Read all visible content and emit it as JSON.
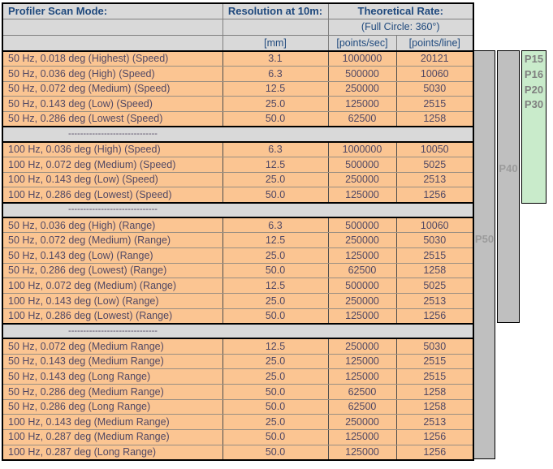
{
  "table": {
    "header": {
      "col1": "Profiler Scan Mode:",
      "col2": "Resolution at 10m:",
      "col34": "Theoretical Rate:",
      "subtitle": "(Full Circle: 360°)",
      "units": [
        "[mm]",
        "[points/sec]",
        "[points/line]"
      ]
    },
    "separator_dashes": "------------------------------",
    "rows": [
      {
        "mode": "50 Hz, 0.018 deg (Highest) (Speed)",
        "mm": "3.1",
        "pps": "1000000",
        "ppl": "20121"
      },
      {
        "mode": "50 Hz, 0.036 deg (High) (Speed)",
        "mm": "6.3",
        "pps": "500000",
        "ppl": "10060"
      },
      {
        "mode": "50 Hz, 0.072 deg (Medium) (Speed)",
        "mm": "12.5",
        "pps": "250000",
        "ppl": "5030"
      },
      {
        "mode": "50 Hz, 0.143 deg (Low) (Speed)",
        "mm": "25.0",
        "pps": "125000",
        "ppl": "2515"
      },
      {
        "mode": "50 Hz, 0.286 deg (Lowest (Speed)",
        "mm": "50.0",
        "pps": "62500",
        "ppl": "1258"
      },
      {
        "sep": true
      },
      {
        "mode": "100 Hz, 0.036 deg (High) (Speed)",
        "mm": "6.3",
        "pps": "1000000",
        "ppl": "10050"
      },
      {
        "mode": "100 Hz, 0.072 deg (Medium) (Speed)",
        "mm": "12.5",
        "pps": "500000",
        "ppl": "5025"
      },
      {
        "mode": "100 Hz, 0.143 deg (Low) (Speed)",
        "mm": "25.0",
        "pps": "250000",
        "ppl": "2513"
      },
      {
        "mode": "100 Hz, 0.286 deg (Lowest) (Speed)",
        "mm": "50.0",
        "pps": "125000",
        "ppl": "1256"
      },
      {
        "sep": true
      },
      {
        "mode": "50 Hz, 0.036 deg (High) (Range)",
        "mm": "6.3",
        "pps": "500000",
        "ppl": "10060"
      },
      {
        "mode": "50 Hz, 0.072 deg (Medium) (Range)",
        "mm": "12.5",
        "pps": "250000",
        "ppl": "5030"
      },
      {
        "mode": "50 Hz, 0.143 deg (Low) (Range)",
        "mm": "25.0",
        "pps": "125000",
        "ppl": "2515"
      },
      {
        "mode": "50 Hz, 0.286 deg (Lowest) (Range)",
        "mm": "50.0",
        "pps": "62500",
        "ppl": "1258"
      },
      {
        "mode": "100 Hz, 0.072 deg (Medium) (Range)",
        "mm": "12.5",
        "pps": "500000",
        "ppl": "5025"
      },
      {
        "mode": "100 Hz, 0.143 deg (Low) (Range)",
        "mm": "25.0",
        "pps": "250000",
        "ppl": "2513"
      },
      {
        "mode": "100 Hz, 0.286 deg (Lowest) (Range)",
        "mm": "50.0",
        "pps": "125000",
        "ppl": "1256"
      },
      {
        "sep": true
      },
      {
        "mode": "50 Hz, 0.072 deg (Medium Range)",
        "mm": "12.5",
        "pps": "250000",
        "ppl": "5030"
      },
      {
        "mode": "50 Hz, 0.143 deg (Medium Range)",
        "mm": "25.0",
        "pps": "125000",
        "ppl": "2515"
      },
      {
        "mode": "50 Hz, 0.143 deg (Long Range)",
        "mm": "25.0",
        "pps": "125000",
        "ppl": "2515"
      },
      {
        "mode": "50 Hz, 0.286 deg (Medium Range)",
        "mm": "50.0",
        "pps": "62500",
        "ppl": "1258"
      },
      {
        "mode": "50 Hz, 0.286 deg (Long Range)",
        "mm": "50.0",
        "pps": "62500",
        "ppl": "1258"
      },
      {
        "mode": "100 Hz, 0.143 deg (Medium Range)",
        "mm": "25.0",
        "pps": "250000",
        "ppl": "2513"
      },
      {
        "mode": "100 Hz, 0.287 deg (Medium Range)",
        "mm": "50.0",
        "pps": "125000",
        "ppl": "1256"
      },
      {
        "mode": "100 Hz, 0.287 deg (Long Range)",
        "mm": "50.0",
        "pps": "125000",
        "ppl": "1256"
      }
    ]
  },
  "bars": {
    "p50": {
      "label": "P50"
    },
    "p40": {
      "label": "P40"
    },
    "green": {
      "labels": [
        "P15",
        "P16",
        "P20",
        "P30"
      ]
    }
  },
  "colors": {
    "header_bg": "#D9D9D9",
    "sep_bg": "#D9D9D9",
    "orange_bg": "#FBC592",
    "bar_gray": "#BFBFBF",
    "bar_green": "#C9EBCB",
    "header_text": "#1F497D",
    "data_text": "#514864",
    "bar_label_gray": "#9B9B9B",
    "green_label": "#7F7F7F"
  }
}
